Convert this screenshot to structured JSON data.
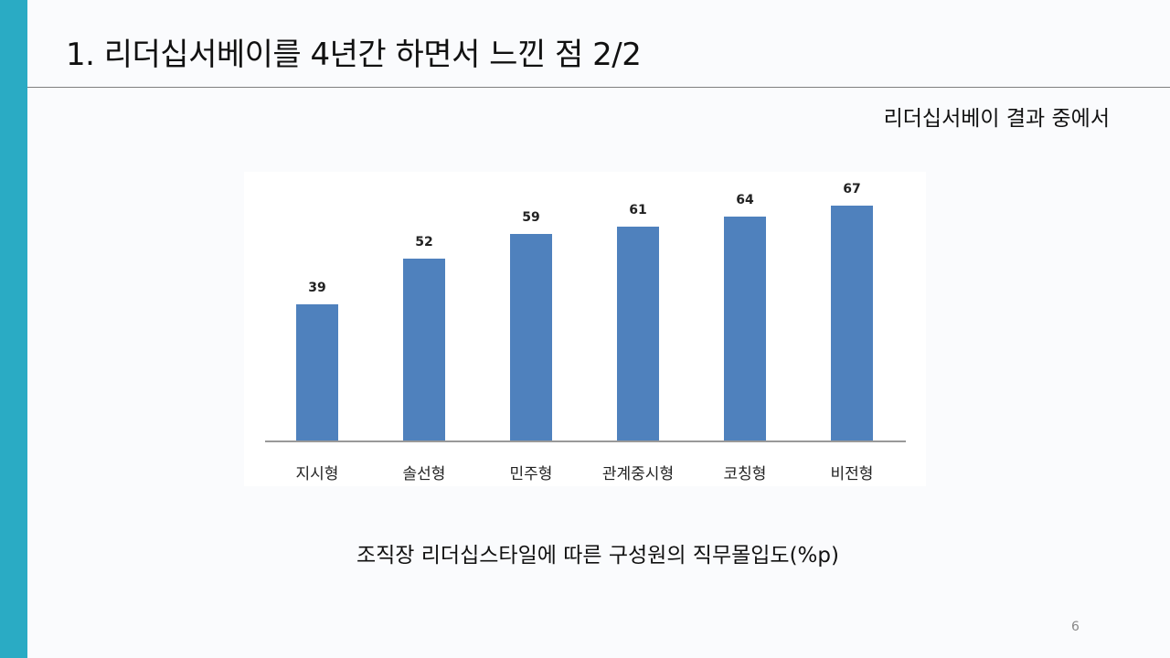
{
  "slide": {
    "title": "1. 리더십서베이를 4년간 하면서 느낀 점 2/2",
    "subtitle": "리더십서베이 결과 중에서",
    "caption": "조직장 리더십스타일에 따른 구성원의 직무몰입도(%p)",
    "page_number": "6",
    "accent_color": "#2aabc4"
  },
  "chart_data": {
    "type": "bar",
    "title": "조직장 리더십스타일에 따른 구성원의 직무몰입도(%p)",
    "categories": [
      "지시형",
      "솔선형",
      "민주형",
      "관계중시형",
      "코칭형",
      "비전형"
    ],
    "values": [
      39,
      52,
      59,
      61,
      64,
      67
    ],
    "value_labels": [
      "39",
      "52",
      "59",
      "61",
      "64",
      "67"
    ],
    "xlabel": "",
    "ylabel": "",
    "ylim": [
      0,
      70
    ],
    "grid": false,
    "legend": "none",
    "bar_color": "#4f81bd"
  }
}
